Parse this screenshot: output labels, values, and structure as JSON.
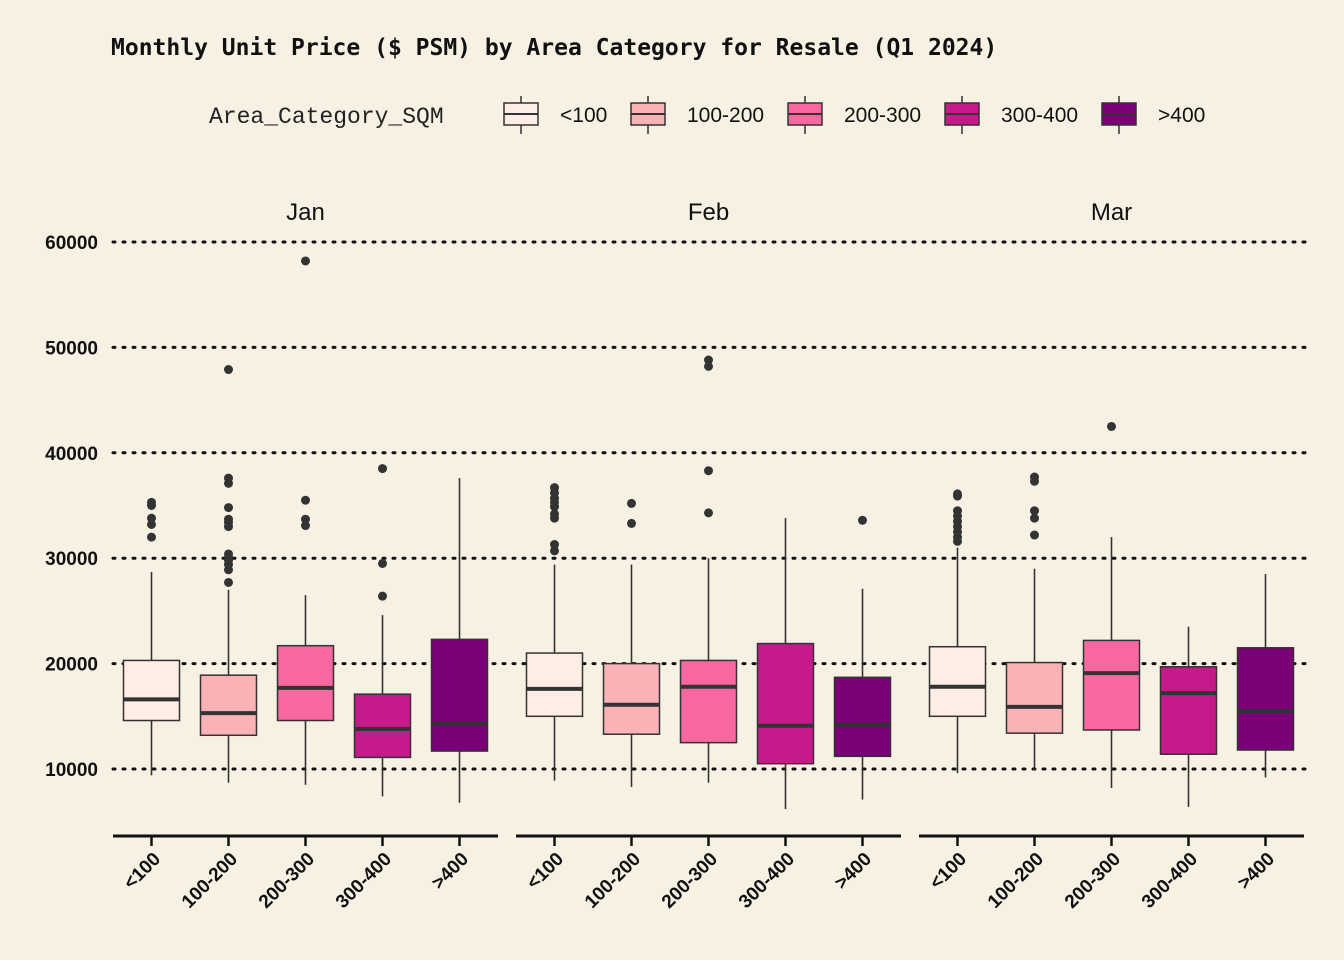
{
  "chart_data": {
    "type": "boxplot",
    "title": "Monthly Unit Price ($ PSM) by Area Category for Resale (Q1 2024)",
    "legend": {
      "title": "Area_Category_SQM",
      "position": "top",
      "entries": [
        "<100",
        "100-200",
        "200-300",
        "300-400",
        ">400"
      ]
    },
    "colors": {
      "<100": "#fdede4",
      "100-200": "#fab2b6",
      "200-300": "#f768a1",
      "300-400": "#c51b8a",
      ">400": "#7a0177",
      "background": "#f7f1e3",
      "median": "#333333",
      "outlier": "#333333"
    },
    "ylim": [
      3500,
      62000
    ],
    "yticks": [
      10000,
      20000,
      30000,
      40000,
      50000,
      60000
    ],
    "ytick_labels": [
      "10000",
      "20000",
      "30000",
      "40000",
      "50000",
      "60000"
    ],
    "grid": "horizontal dotted",
    "categories": [
      "<100",
      "100-200",
      "200-300",
      "300-400",
      ">400"
    ],
    "facets": [
      {
        "label": "Jan",
        "boxes": [
          {
            "category": "<100",
            "whisker_low": 9400,
            "q1": 14600,
            "median": 16600,
            "q3": 20300,
            "whisker_high": 28700,
            "outliers": [
              32000,
              33200,
              33800,
              35000,
              35300
            ]
          },
          {
            "category": "100-200",
            "whisker_low": 8700,
            "q1": 13200,
            "median": 15300,
            "q3": 18900,
            "whisker_high": 27000,
            "outliers": [
              27700,
              28900,
              29400,
              29800,
              30100,
              30400,
              33000,
              33400,
              33700,
              34800,
              37100,
              37600,
              47900
            ]
          },
          {
            "category": "200-300",
            "whisker_low": 8500,
            "q1": 14600,
            "median": 17700,
            "q3": 21700,
            "whisker_high": 26500,
            "outliers": [
              33100,
              33700,
              35500,
              58200
            ]
          },
          {
            "category": "300-400",
            "whisker_low": 7400,
            "q1": 11100,
            "median": 13800,
            "q3": 17100,
            "whisker_high": 24600,
            "outliers": [
              26400,
              29500,
              38500
            ]
          },
          {
            "category": ">400",
            "whisker_low": 6800,
            "q1": 11700,
            "median": 14300,
            "q3": 22300,
            "whisker_high": 37600,
            "outliers": []
          }
        ]
      },
      {
        "label": "Feb",
        "boxes": [
          {
            "category": "<100",
            "whisker_low": 8900,
            "q1": 15000,
            "median": 17600,
            "q3": 21000,
            "whisker_high": 29400,
            "outliers": [
              30700,
              31300,
              33800,
              34200,
              34900,
              35300,
              35700,
              36200,
              36700
            ]
          },
          {
            "category": "100-200",
            "whisker_low": 8300,
            "q1": 13300,
            "median": 16100,
            "q3": 20000,
            "whisker_high": 29400,
            "outliers": [
              33300,
              35200
            ]
          },
          {
            "category": "200-300",
            "whisker_low": 8700,
            "q1": 12500,
            "median": 17800,
            "q3": 20300,
            "whisker_high": 30000,
            "outliers": [
              34300,
              38300,
              48200,
              48800
            ]
          },
          {
            "category": "300-400",
            "whisker_low": 6200,
            "q1": 10500,
            "median": 14100,
            "q3": 21900,
            "whisker_high": 33800,
            "outliers": []
          },
          {
            "category": ">400",
            "whisker_low": 7100,
            "q1": 11200,
            "median": 14200,
            "q3": 18700,
            "whisker_high": 27100,
            "outliers": [
              33600
            ]
          }
        ]
      },
      {
        "label": "Mar",
        "boxes": [
          {
            "category": "<100",
            "whisker_low": 9600,
            "q1": 15000,
            "median": 17800,
            "q3": 21600,
            "whisker_high": 31000,
            "outliers": [
              31600,
              32000,
              32500,
              33000,
              33500,
              34000,
              34500,
              35900,
              36100
            ]
          },
          {
            "category": "100-200",
            "whisker_low": 9900,
            "q1": 13400,
            "median": 15900,
            "q3": 20100,
            "whisker_high": 29000,
            "outliers": [
              32200,
              33800,
              34500,
              37300,
              37700
            ]
          },
          {
            "category": "200-300",
            "whisker_low": 8200,
            "q1": 13700,
            "median": 19100,
            "q3": 22200,
            "whisker_high": 32000,
            "outliers": [
              42500
            ]
          },
          {
            "category": "300-400",
            "whisker_low": 6400,
            "q1": 11400,
            "median": 17200,
            "q3": 19700,
            "whisker_high": 23500,
            "outliers": []
          },
          {
            "category": ">400",
            "whisker_low": 9200,
            "q1": 11800,
            "median": 15500,
            "q3": 21500,
            "whisker_high": 28500,
            "outliers": []
          }
        ]
      }
    ]
  }
}
